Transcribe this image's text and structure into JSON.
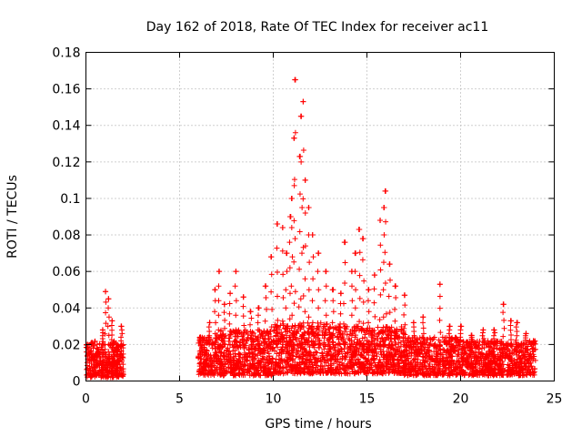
{
  "chart_data": {
    "type": "scatter",
    "title": "Day 162 of 2018, Rate Of TEC Index for receiver ac11",
    "xlabel": "GPS time / hours",
    "ylabel": "ROTI / TECUs",
    "xlim": [
      0,
      25
    ],
    "ylim": [
      0,
      0.18
    ],
    "xticks": [
      "0",
      "5",
      "10",
      "15",
      "20",
      "25"
    ],
    "yticks": [
      "0",
      "0.02",
      "0.04",
      "0.06",
      "0.08",
      "0.1",
      "0.12",
      "0.14",
      "0.16",
      "0.18"
    ],
    "grid": true,
    "marker": "plus",
    "color": "#ff0000",
    "data_gap": [
      2.0,
      6.0
    ],
    "series": [
      {
        "points": [
          [
            0.1,
            0.012
          ],
          [
            0.3,
            0.021
          ],
          [
            0.6,
            0.009
          ],
          [
            0.9,
            0.028
          ],
          [
            1.05,
            0.049
          ],
          [
            1.2,
            0.045
          ],
          [
            1.4,
            0.033
          ],
          [
            1.7,
            0.016
          ],
          [
            1.9,
            0.03
          ],
          [
            6.1,
            0.024
          ],
          [
            6.6,
            0.032
          ],
          [
            6.9,
            0.05
          ],
          [
            7.1,
            0.06
          ],
          [
            7.4,
            0.042
          ],
          [
            7.7,
            0.048
          ],
          [
            8.0,
            0.06
          ],
          [
            8.4,
            0.046
          ],
          [
            8.8,
            0.038
          ],
          [
            9.2,
            0.04
          ],
          [
            9.6,
            0.052
          ],
          [
            9.9,
            0.068
          ],
          [
            10.2,
            0.086
          ],
          [
            10.5,
            0.084
          ],
          [
            10.7,
            0.07
          ],
          [
            10.9,
            0.09
          ],
          [
            11.0,
            0.1
          ],
          [
            11.1,
            0.133
          ],
          [
            11.15,
            0.165
          ],
          [
            11.4,
            0.123
          ],
          [
            11.5,
            0.145
          ],
          [
            11.6,
            0.153
          ],
          [
            11.7,
            0.11
          ],
          [
            11.9,
            0.095
          ],
          [
            12.1,
            0.08
          ],
          [
            12.4,
            0.07
          ],
          [
            12.8,
            0.06
          ],
          [
            13.2,
            0.05
          ],
          [
            13.6,
            0.048
          ],
          [
            13.8,
            0.076
          ],
          [
            14.2,
            0.06
          ],
          [
            14.4,
            0.07
          ],
          [
            14.6,
            0.083
          ],
          [
            14.8,
            0.078
          ],
          [
            15.1,
            0.05
          ],
          [
            15.4,
            0.058
          ],
          [
            15.7,
            0.088
          ],
          [
            15.9,
            0.095
          ],
          [
            16.0,
            0.104
          ],
          [
            16.2,
            0.064
          ],
          [
            16.5,
            0.052
          ],
          [
            17.0,
            0.047
          ],
          [
            17.5,
            0.032
          ],
          [
            18.0,
            0.035
          ],
          [
            18.9,
            0.053
          ],
          [
            19.4,
            0.03
          ],
          [
            20.0,
            0.03
          ],
          [
            20.6,
            0.025
          ],
          [
            21.2,
            0.028
          ],
          [
            21.8,
            0.028
          ],
          [
            22.3,
            0.042
          ],
          [
            22.7,
            0.033
          ],
          [
            23.0,
            0.032
          ],
          [
            23.5,
            0.026
          ],
          [
            23.9,
            0.022
          ]
        ],
        "bands": [
          {
            "x": [
              0.0,
              2.0
            ],
            "ymin": 0.002,
            "ymax": 0.022
          },
          {
            "x": [
              6.0,
              7.0
            ],
            "ymin": 0.003,
            "ymax": 0.024
          },
          {
            "x": [
              7.0,
              10.0
            ],
            "ymin": 0.003,
            "ymax": 0.028
          },
          {
            "x": [
              10.0,
              13.0
            ],
            "ymin": 0.004,
            "ymax": 0.032
          },
          {
            "x": [
              13.0,
              17.0
            ],
            "ymin": 0.004,
            "ymax": 0.03
          },
          {
            "x": [
              17.0,
              20.0
            ],
            "ymin": 0.003,
            "ymax": 0.024
          },
          {
            "x": [
              20.0,
              24.0
            ],
            "ymin": 0.003,
            "ymax": 0.022
          }
        ]
      }
    ]
  }
}
